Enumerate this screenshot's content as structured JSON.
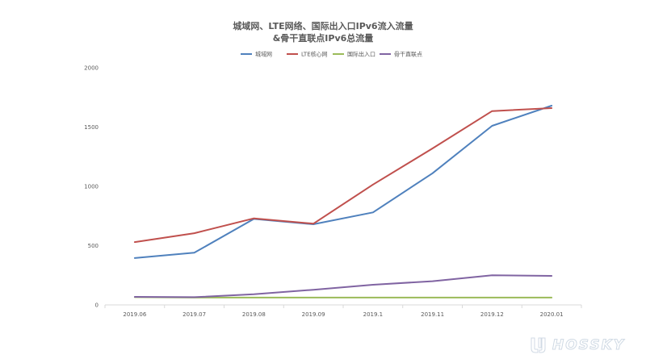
{
  "chart_data": {
    "type": "line",
    "title": [
      "城域网、LTE网络、国际出入口IPv6流入流量",
      "&骨干直联点IPv6总流量"
    ],
    "categories": [
      "2019.06",
      "2019.07",
      "2019.08",
      "2019.09",
      "2019.1",
      "2019.11",
      "2019.12",
      "2020.01"
    ],
    "y_ticks": [
      "0",
      "500",
      "1000",
      "1500",
      "2000"
    ],
    "ylim": [
      0,
      2000
    ],
    "grid": false,
    "legend_position": "top",
    "series": [
      {
        "name": "城域网",
        "color": "#4f81bd",
        "values": [
          395,
          440,
          725,
          680,
          780,
          1110,
          1510,
          1680
        ]
      },
      {
        "name": "LTE核心网",
        "color": "#c0504d",
        "values": [
          530,
          605,
          730,
          685,
          1015,
          1320,
          1635,
          1660
        ]
      },
      {
        "name": "国际出入口",
        "color": "#9bbb59",
        "values": [
          65,
          62,
          62,
          62,
          62,
          62,
          62,
          62
        ]
      },
      {
        "name": "骨干直联点",
        "color": "#8064a2",
        "values": [
          68,
          65,
          90,
          128,
          170,
          200,
          250,
          245
        ]
      }
    ]
  },
  "watermark": {
    "text": "HOSSKY"
  }
}
